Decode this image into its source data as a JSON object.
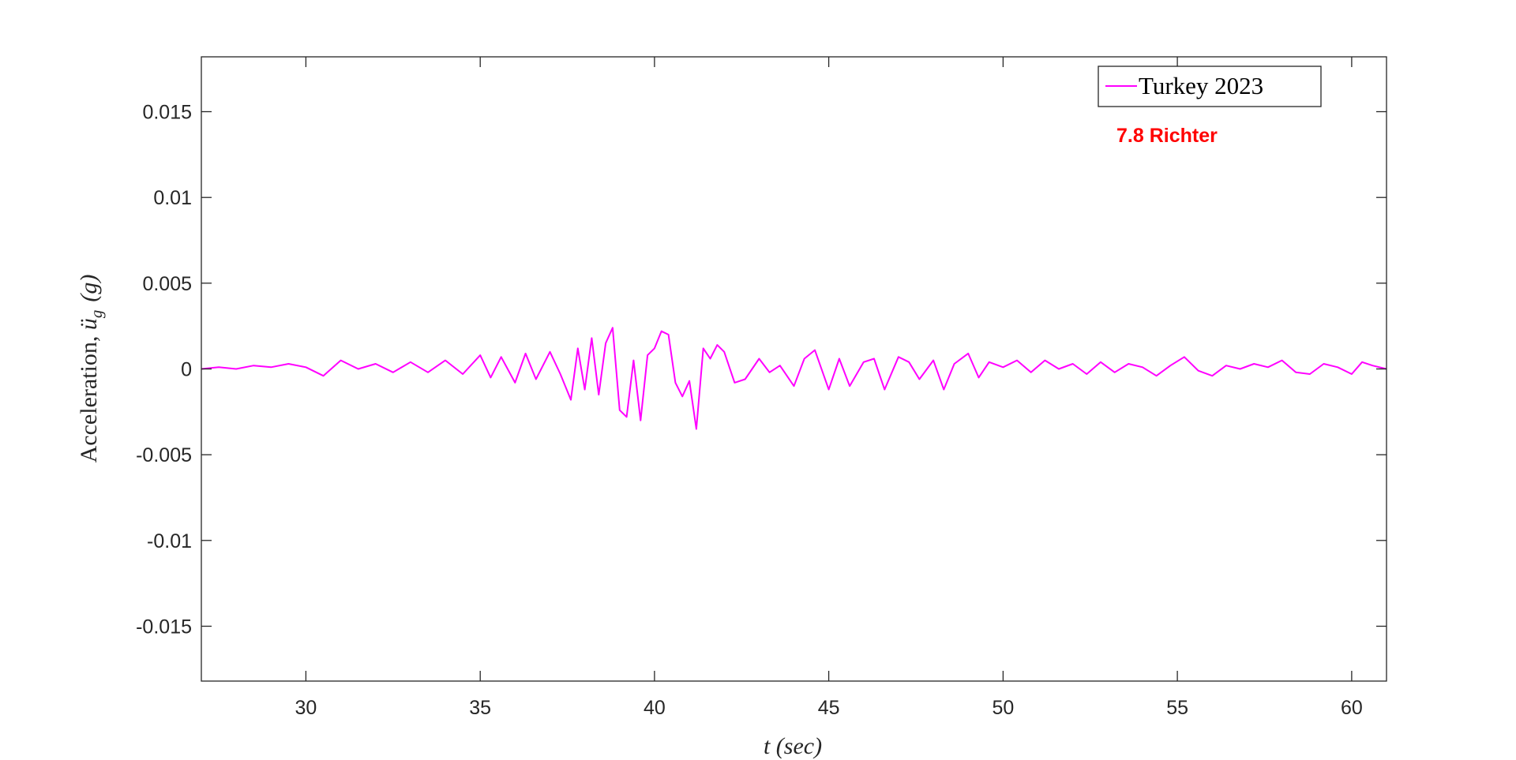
{
  "chart_data": {
    "type": "line",
    "xlabel": "t (sec)",
    "ylabel_text": "Acceleration, ",
    "ylabel_symbol": "ü",
    "ylabel_sub": "g",
    "ylabel_unit": "(g)",
    "xlim": [
      27,
      61
    ],
    "ylim": [
      -0.0182,
      0.0182
    ],
    "x_ticks": [
      30,
      35,
      40,
      45,
      50,
      55,
      60
    ],
    "x_tick_labels": [
      "30",
      "35",
      "40",
      "45",
      "50",
      "55",
      "60"
    ],
    "y_ticks": [
      0.015,
      0.01,
      0.005,
      0,
      -0.005,
      -0.01,
      -0.015
    ],
    "y_tick_labels": [
      "0.015",
      "0.01",
      "0.005",
      "0",
      "-0.005",
      "-0.01",
      "-0.015"
    ],
    "grid": false,
    "legend_position": "top-right",
    "annotation": {
      "text": "7.8 Richter",
      "color": "#ff0000"
    },
    "series": [
      {
        "name": "Turkey 2023",
        "color": "#ff00ff",
        "x": [
          27.0,
          27.5,
          28.0,
          28.5,
          29.0,
          29.5,
          30.0,
          30.5,
          31.0,
          31.5,
          32.0,
          32.5,
          33.0,
          33.5,
          34.0,
          34.5,
          35.0,
          35.3,
          35.6,
          36.0,
          36.3,
          36.6,
          37.0,
          37.3,
          37.6,
          37.8,
          38.0,
          38.2,
          38.4,
          38.6,
          38.8,
          39.0,
          39.2,
          39.4,
          39.6,
          39.8,
          40.0,
          40.2,
          40.4,
          40.6,
          40.8,
          41.0,
          41.2,
          41.4,
          41.6,
          41.8,
          42.0,
          42.3,
          42.6,
          43.0,
          43.3,
          43.6,
          44.0,
          44.3,
          44.6,
          45.0,
          45.3,
          45.6,
          46.0,
          46.3,
          46.6,
          47.0,
          47.3,
          47.6,
          48.0,
          48.3,
          48.6,
          49.0,
          49.3,
          49.6,
          50.0,
          50.4,
          50.8,
          51.2,
          51.6,
          52.0,
          52.4,
          52.8,
          53.2,
          53.6,
          54.0,
          54.4,
          54.8,
          55.2,
          55.6,
          56.0,
          56.4,
          56.8,
          57.2,
          57.6,
          58.0,
          58.4,
          58.8,
          59.2,
          59.6,
          60.0,
          60.3,
          60.6,
          61.0
        ],
        "y": [
          0.0,
          0.0001,
          0.0,
          0.0002,
          0.0001,
          0.0003,
          0.0001,
          -0.0004,
          0.0005,
          0.0,
          0.0003,
          -0.0002,
          0.0004,
          -0.0002,
          0.0005,
          -0.0003,
          0.0008,
          -0.0005,
          0.0007,
          -0.0008,
          0.0009,
          -0.0006,
          0.001,
          -0.0003,
          -0.0018,
          0.0012,
          -0.0012,
          0.0018,
          -0.0015,
          0.0015,
          0.0024,
          -0.0024,
          -0.0028,
          0.0005,
          -0.003,
          0.0008,
          0.0012,
          0.0022,
          0.002,
          -0.0008,
          -0.0016,
          -0.0007,
          -0.0035,
          0.0012,
          0.0006,
          0.0014,
          0.001,
          -0.0008,
          -0.0006,
          0.0006,
          -0.0002,
          0.0002,
          -0.001,
          0.0006,
          0.0011,
          -0.0012,
          0.0006,
          -0.001,
          0.0004,
          0.0006,
          -0.0012,
          0.0007,
          0.0004,
          -0.0006,
          0.0005,
          -0.0012,
          0.0003,
          0.0009,
          -0.0005,
          0.0004,
          0.0001,
          0.0005,
          -0.0002,
          0.0005,
          0.0,
          0.0003,
          -0.0003,
          0.0004,
          -0.0002,
          0.0003,
          0.0001,
          -0.0004,
          0.0002,
          0.0007,
          -0.0001,
          -0.0004,
          0.0002,
          0.0,
          0.0003,
          0.0001,
          0.0005,
          -0.0002,
          -0.0003,
          0.0003,
          0.0001,
          -0.0003,
          0.0004,
          0.0002,
          0.0
        ]
      }
    ]
  }
}
